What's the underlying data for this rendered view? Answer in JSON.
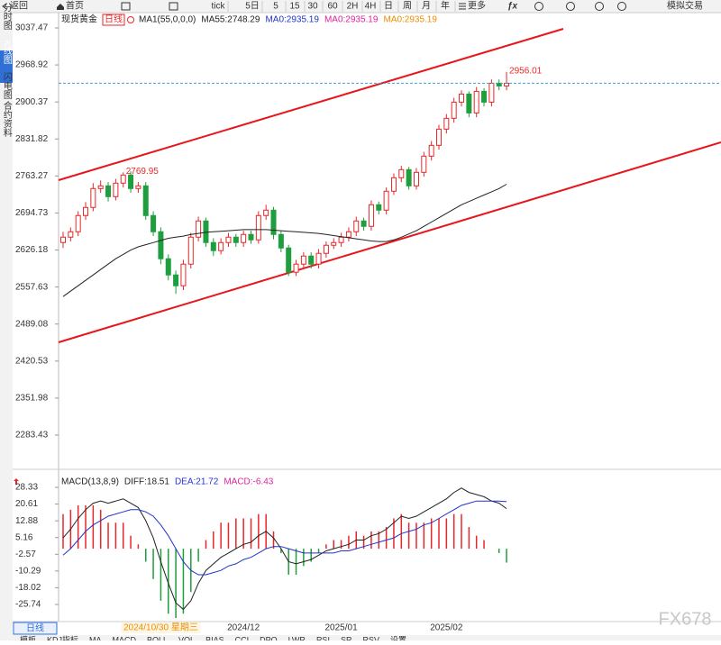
{
  "toolbar": {
    "back": "返回",
    "home": "首页",
    "periods": [
      "tick",
      "5日",
      "5",
      "15",
      "30",
      "60",
      "2H",
      "4H",
      "日",
      "周",
      "月",
      "年"
    ],
    "more": "更多",
    "trade": "模拟交易"
  },
  "sidebar": [
    "分时图",
    "K线图",
    "闪电图",
    "合约资料"
  ],
  "bottom_tab": "日线",
  "indicator_tabs": [
    "模板",
    "KDJ指标",
    "MA",
    "MACD",
    "BOLL",
    "VOL",
    "BIAS",
    "CCI",
    "DPO",
    "LWR",
    "RSI",
    "SR",
    "RSV",
    "设置"
  ],
  "watermark": "FX678",
  "chart_data": [
    {
      "type": "candlestick",
      "instrument": "现货黄金",
      "period": "日线",
      "legend": [
        {
          "text": "MA1(55,0,0,0)",
          "color": "#222222"
        },
        {
          "text": "MA55:2748.29",
          "color": "#222222"
        },
        {
          "text": "MA0:2935.19",
          "color": "#2233cc"
        },
        {
          "text": "MA0:2935.19",
          "color": "#e0229b"
        },
        {
          "text": "MA0:2935.19",
          "color": "#f08c00"
        }
      ],
      "categories": [
        null,
        null,
        null,
        null,
        null,
        null,
        null,
        null,
        null,
        null,
        null,
        null,
        null,
        "2024/10/30 星期三",
        null,
        null,
        null,
        null,
        null,
        null,
        null,
        null,
        null,
        null,
        "2024/12",
        null,
        null,
        null,
        null,
        null,
        null,
        null,
        null,
        null,
        null,
        null,
        null,
        "2025/01",
        null,
        null,
        null,
        null,
        null,
        null,
        null,
        null,
        null,
        null,
        null,
        null,
        null,
        "2025/02",
        null,
        null,
        null,
        null,
        null,
        null,
        null,
        null
      ],
      "open": [
        2640,
        2650,
        2660,
        2690,
        2705,
        2740,
        2745,
        2725,
        2750,
        2765,
        2740,
        2745,
        2690,
        2660,
        2610,
        2580,
        2560,
        2600,
        2650,
        2680,
        2640,
        2625,
        2640,
        2650,
        2640,
        2655,
        2645,
        2690,
        2700,
        2655,
        2630,
        2585,
        2600,
        2615,
        2600,
        2620,
        2635,
        2640,
        2650,
        2660,
        2680,
        2670,
        2710,
        2700,
        2735,
        2760,
        2775,
        2745,
        2770,
        2800,
        2820,
        2850,
        2870,
        2900,
        2915,
        2880,
        2920,
        2900,
        2935,
        2930
      ],
      "high": [
        2660,
        2668,
        2698,
        2715,
        2750,
        2755,
        2752,
        2758,
        2769.95,
        2772,
        2752,
        2752,
        2698,
        2668,
        2618,
        2588,
        2608,
        2658,
        2688,
        2686,
        2648,
        2648,
        2658,
        2656,
        2662,
        2662,
        2698,
        2710,
        2706,
        2662,
        2636,
        2608,
        2622,
        2622,
        2628,
        2642,
        2648,
        2658,
        2668,
        2688,
        2686,
        2718,
        2716,
        2742,
        2768,
        2782,
        2780,
        2778,
        2808,
        2828,
        2858,
        2878,
        2908,
        2922,
        2920,
        2928,
        2926,
        2942,
        2942,
        2956.01
      ],
      "low": [
        2630,
        2642,
        2652,
        2682,
        2698,
        2732,
        2716,
        2718,
        2742,
        2732,
        2732,
        2682,
        2652,
        2600,
        2570,
        2545,
        2552,
        2592,
        2642,
        2632,
        2615,
        2618,
        2632,
        2632,
        2632,
        2638,
        2638,
        2682,
        2646,
        2622,
        2578,
        2578,
        2592,
        2592,
        2592,
        2612,
        2628,
        2632,
        2642,
        2652,
        2662,
        2662,
        2692,
        2692,
        2728,
        2752,
        2738,
        2738,
        2762,
        2792,
        2812,
        2842,
        2862,
        2892,
        2872,
        2872,
        2892,
        2892,
        2922,
        2922
      ],
      "close": [
        2650,
        2660,
        2690,
        2705,
        2740,
        2745,
        2725,
        2750,
        2765,
        2740,
        2745,
        2690,
        2660,
        2610,
        2580,
        2560,
        2600,
        2650,
        2680,
        2640,
        2625,
        2640,
        2650,
        2640,
        2655,
        2645,
        2690,
        2700,
        2655,
        2630,
        2585,
        2600,
        2615,
        2600,
        2620,
        2635,
        2640,
        2650,
        2660,
        2680,
        2670,
        2710,
        2700,
        2735,
        2760,
        2775,
        2745,
        2770,
        2800,
        2820,
        2850,
        2870,
        2900,
        2915,
        2880,
        2920,
        2900,
        2935,
        2930,
        2935
      ],
      "series": [
        {
          "name": "MA55",
          "color": "#222222",
          "values": [
            2540,
            2550,
            2560,
            2570,
            2580,
            2590,
            2600,
            2610,
            2618,
            2626,
            2632,
            2636,
            2640,
            2644,
            2648,
            2650,
            2652,
            2655,
            2657,
            2659,
            2660,
            2661,
            2662,
            2663,
            2664,
            2664,
            2664,
            2664,
            2663,
            2662,
            2661,
            2660,
            2659,
            2658,
            2657,
            2655,
            2653,
            2651,
            2649,
            2647,
            2645,
            2643,
            2642,
            2642,
            2645,
            2650,
            2656,
            2662,
            2670,
            2678,
            2686,
            2694,
            2702,
            2710,
            2716,
            2722,
            2728,
            2734,
            2740,
            2748
          ]
        }
      ],
      "marked_highs": [
        8,
        59
      ],
      "up_color": "#e8272a",
      "down_color": "#1e9e3e",
      "ylim": [
        2221.7,
        3055.8
      ],
      "yticks": [
        3037.47,
        2968.92,
        2900.37,
        2831.82,
        2763.27,
        2694.73,
        2626.18,
        2557.63,
        2489.08,
        2420.53,
        2351.98,
        2283.43
      ]
    },
    {
      "type": "macd",
      "title": "MACD(13,8,9)",
      "legend": [
        {
          "text": "DIFF:18.51",
          "color": "#222222"
        },
        {
          "text": "DEA:21.72",
          "color": "#2233cc"
        },
        {
          "text": "MACD:-6.43",
          "color": "#e0229b"
        }
      ],
      "series": [
        {
          "name": "DIFF",
          "color": "#222222",
          "values": [
            5,
            9,
            14,
            18,
            21,
            22,
            21,
            22,
            23,
            21,
            19,
            13,
            5,
            -6,
            -16,
            -25,
            -28,
            -24,
            -16,
            -10,
            -7,
            -4,
            -2,
            0,
            2,
            3,
            6,
            8,
            5,
            0,
            -6,
            -7,
            -6,
            -5,
            -3,
            -1,
            0,
            1,
            2,
            4,
            4,
            6,
            7,
            9,
            12,
            15,
            14,
            15,
            17,
            19,
            21,
            23,
            26,
            28,
            26,
            25,
            24,
            22,
            21,
            18.51
          ]
        },
        {
          "name": "DEA",
          "color": "#2233cc",
          "values": [
            -3,
            0,
            4,
            8,
            11,
            13,
            15,
            16,
            17,
            18,
            18,
            17,
            15,
            11,
            6,
            0,
            -6,
            -10,
            -12,
            -12,
            -11,
            -10,
            -8,
            -7,
            -5,
            -4,
            -2,
            0,
            1,
            1,
            0,
            -1,
            -2,
            -2,
            -2,
            -2,
            -2,
            -1,
            -1,
            0,
            1,
            2,
            3,
            4,
            5,
            7,
            8,
            9,
            11,
            12,
            14,
            16,
            18,
            20,
            21,
            22,
            22,
            22,
            22,
            21.72
          ]
        }
      ],
      "histogram": [
        16,
        18,
        20,
        20,
        20,
        18,
        12,
        12,
        12,
        6,
        2,
        -6,
        -14,
        -24,
        -30,
        -32,
        -30,
        -20,
        -6,
        4,
        8,
        12,
        12,
        14,
        14,
        14,
        16,
        16,
        8,
        -2,
        -12,
        -12,
        -8,
        -6,
        -2,
        2,
        4,
        4,
        6,
        8,
        6,
        8,
        8,
        10,
        14,
        16,
        12,
        12,
        12,
        14,
        14,
        14,
        16,
        16,
        10,
        6,
        4,
        0,
        -2,
        -6.43
      ],
      "up_color": "#e8272a",
      "down_color": "#1e9e3e",
      "ylim": [
        -33.64,
        34.15
      ],
      "yticks": [
        28.33,
        20.61,
        12.88,
        5.16,
        -2.57,
        -10.29,
        -18.02,
        -25.74
      ]
    }
  ]
}
